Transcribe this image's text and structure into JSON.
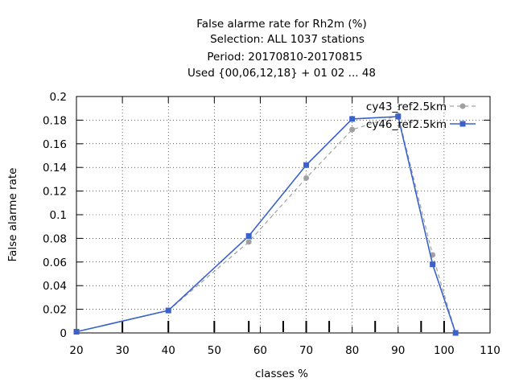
{
  "chart_data": {
    "type": "line",
    "title_lines": [
      "False alarme rate  for Rh2m (%)",
      "Selection: ALL    1037 stations",
      "Period: 20170810-20170815",
      "Used {00,06,12,18} + 01 02 ... 48"
    ],
    "xlabel": "classes %",
    "ylabel": "False alarme rate",
    "xlim": [
      20,
      110
    ],
    "ylim": [
      0,
      0.2
    ],
    "x_ticks": [
      20,
      30,
      40,
      50,
      60,
      70,
      80,
      90,
      100,
      110
    ],
    "y_ticks": [
      0,
      0.02,
      0.04,
      0.06,
      0.08,
      0.1,
      0.12,
      0.14,
      0.16,
      0.18,
      0.2
    ],
    "x_tick_labels": [
      "20",
      "30",
      "40",
      "50",
      "60",
      "70",
      "80",
      "90",
      "100",
      "110"
    ],
    "y_tick_labels": [
      "0",
      "0.02",
      "0.04",
      "0.06",
      "0.08",
      "0.1",
      "0.12",
      "0.14",
      "0.16",
      "0.18",
      "0.2"
    ],
    "class_markers": [
      30,
      40,
      50,
      57.5,
      65,
      70,
      75,
      85,
      95,
      100
    ],
    "grid": true,
    "legend_position": "top-right",
    "series": [
      {
        "name": "cy43_ref2.5km",
        "color": "#a0a0a0",
        "dash": true,
        "marker": "circle",
        "x": [
          20,
          40,
          57.5,
          70,
          80,
          90,
          97.5,
          102.5
        ],
        "y": [
          0.001,
          0.019,
          0.077,
          0.131,
          0.172,
          0.184,
          0.066,
          0.0
        ]
      },
      {
        "name": "cy46_ref2.5km",
        "color": "#3a62c8",
        "dash": false,
        "marker": "square",
        "x": [
          20,
          40,
          57.5,
          70,
          80,
          90,
          97.5,
          102.5
        ],
        "y": [
          0.001,
          0.019,
          0.082,
          0.142,
          0.181,
          0.183,
          0.058,
          0.0
        ]
      }
    ]
  }
}
